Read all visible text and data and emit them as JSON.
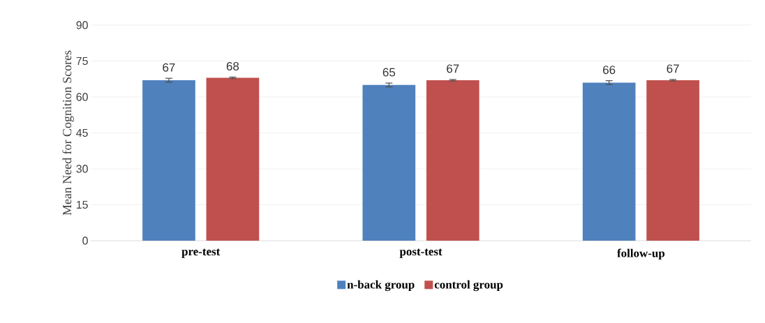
{
  "chart_data": {
    "type": "bar",
    "ylabel": "Mean Need for Cognition Scores",
    "categories": [
      "pre-test",
      "post-test",
      "follow-up"
    ],
    "series": [
      {
        "name": "n-back group",
        "color": "#4f81bd",
        "values": [
          67,
          65,
          66
        ],
        "errors": [
          0.8,
          0.8,
          0.8
        ]
      },
      {
        "name": "control group",
        "color": "#c0504d",
        "values": [
          68,
          67,
          67
        ],
        "errors": [
          0.3,
          0.3,
          0.3
        ]
      }
    ],
    "ylim": [
      0,
      90
    ],
    "yticks": [
      0,
      15,
      30,
      45,
      60,
      75,
      90
    ],
    "grid": "y",
    "legend": "bottom",
    "data_labels": true
  }
}
